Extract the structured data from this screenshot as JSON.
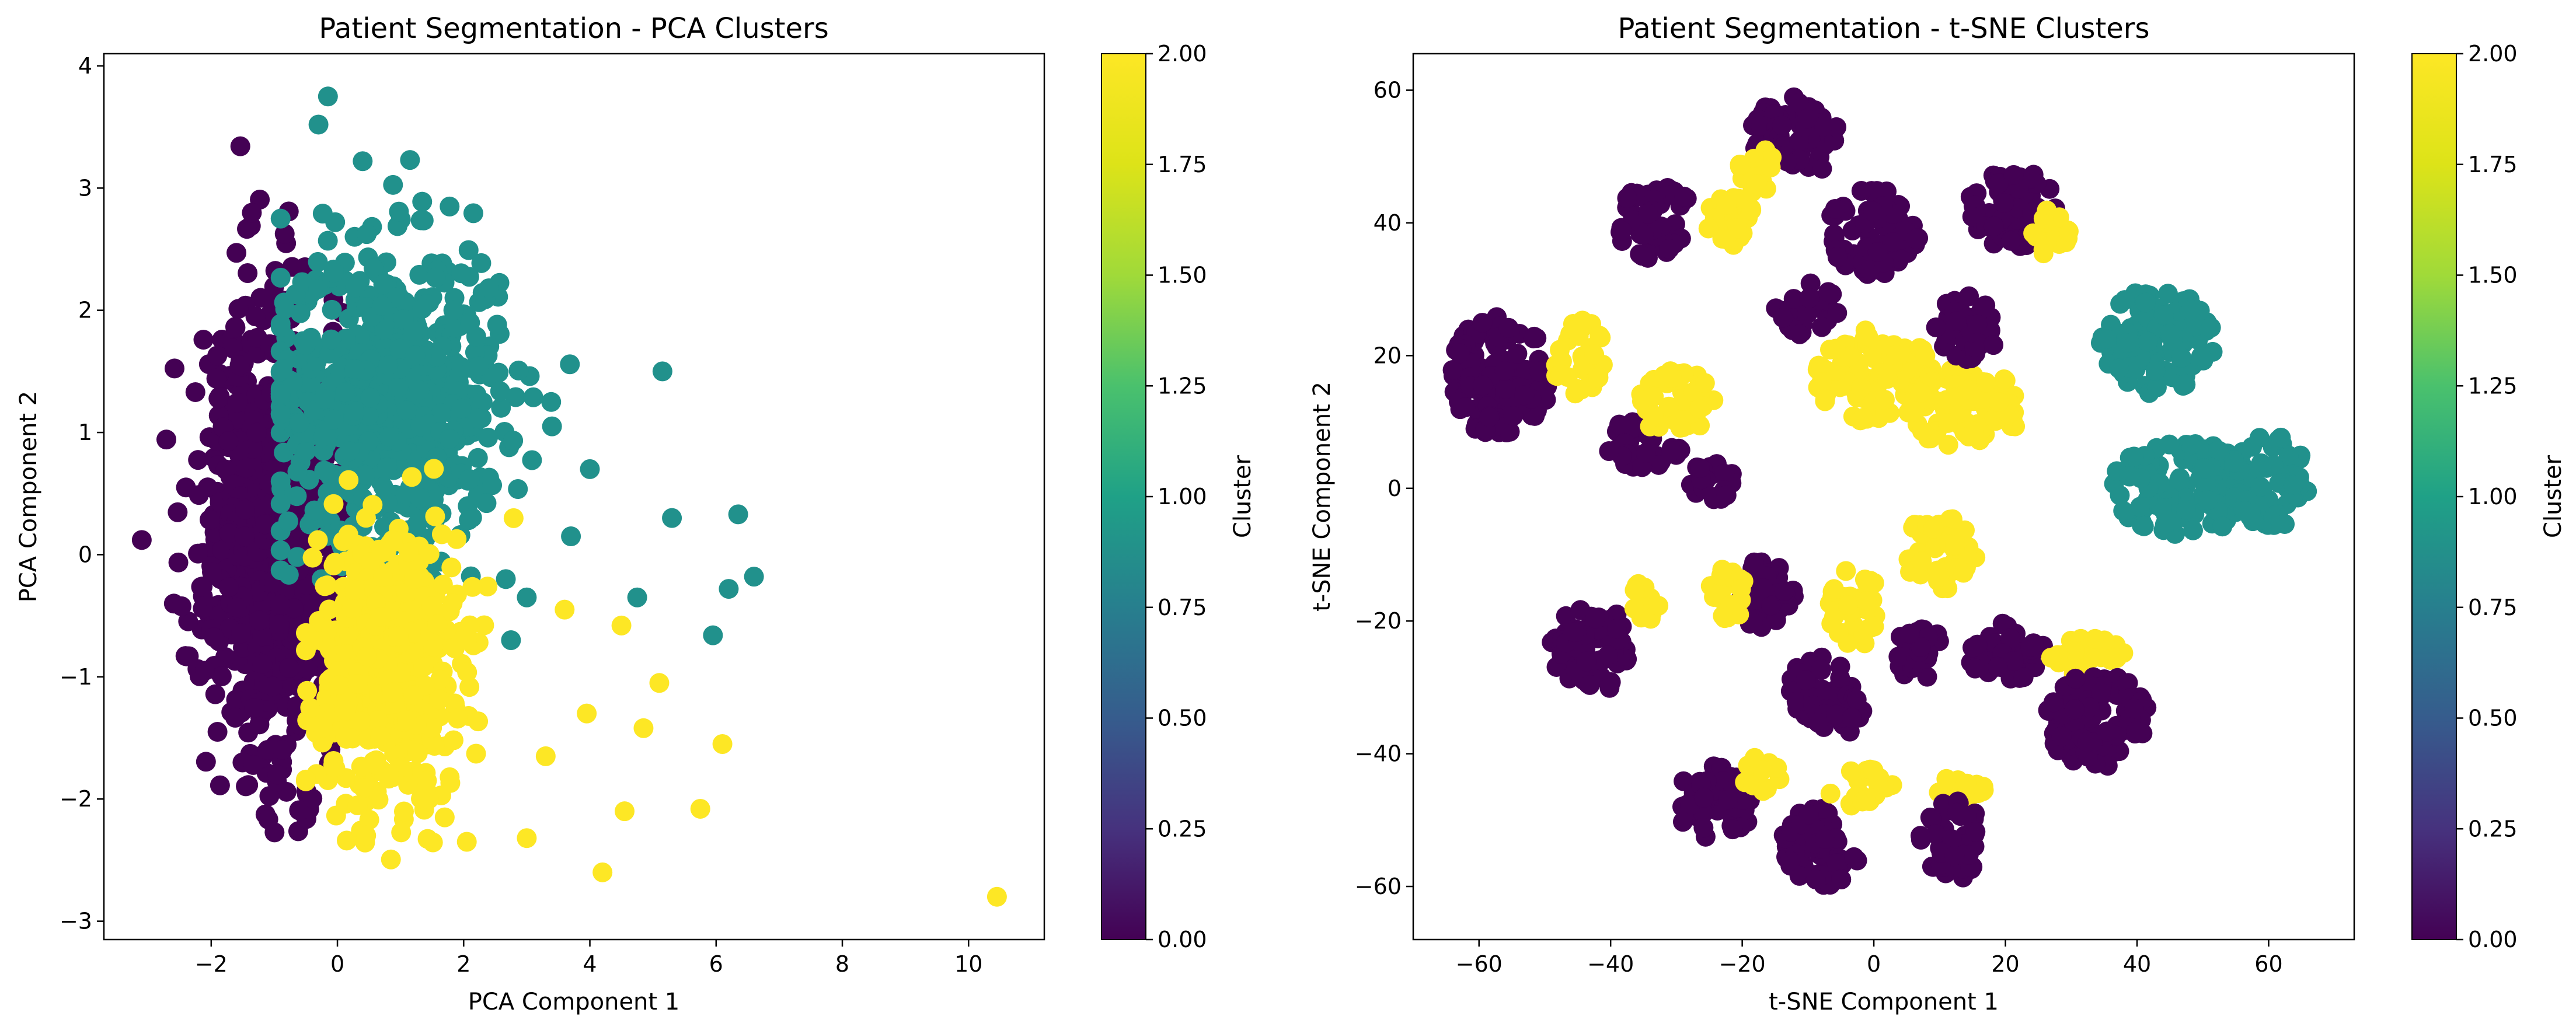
{
  "chart_data": [
    {
      "type": "scatter",
      "title": "Patient Segmentation - PCA Clusters",
      "xlabel": "PCA Component 1",
      "ylabel": "PCA Component 2",
      "xlim": [
        -3.7,
        11.2
      ],
      "ylim": [
        -3.15,
        4.1
      ],
      "xticks": [
        "−2",
        "0",
        "2",
        "4",
        "6",
        "8",
        "10"
      ],
      "xtick_values": [
        -2,
        0,
        2,
        4,
        6,
        8,
        10
      ],
      "yticks": [
        "−3",
        "−2",
        "−1",
        "0",
        "1",
        "2",
        "3",
        "4"
      ],
      "ytick_values": [
        -3,
        -2,
        -1,
        0,
        1,
        2,
        3,
        4
      ],
      "grid": false,
      "colorbar": {
        "label": "Cluster",
        "range": [
          0,
          2
        ],
        "colormap": "viridis",
        "ticks": [
          "0.00",
          "0.25",
          "0.50",
          "0.75",
          "1.00",
          "1.25",
          "1.50",
          "1.75",
          "2.00"
        ]
      },
      "series": [
        {
          "cluster": 0,
          "color": "#440154",
          "centroid": [
            -1.0,
            0.2
          ],
          "spread": [
            0.55,
            0.9
          ],
          "points": [
            [
              -3.1,
              0.12
            ],
            [
              -2.25,
              1.33
            ],
            [
              -2.1,
              -0.95
            ],
            [
              -1.6,
              2.47
            ],
            [
              -1.3,
              1.95
            ],
            [
              -1.0,
              2.05
            ],
            [
              -0.7,
              1.75
            ],
            [
              -0.95,
              -1.8
            ],
            [
              -0.45,
              -1.3
            ],
            [
              -1.55,
              1.55
            ],
            [
              -2.4,
              0.55
            ],
            [
              -1.9,
              -1.45
            ]
          ]
        },
        {
          "cluster": 1,
          "color": "#21918c",
          "centroid": [
            0.8,
            1.3
          ],
          "spread": [
            0.9,
            0.6
          ],
          "points": [
            [
              -0.15,
              3.75
            ],
            [
              -0.3,
              3.52
            ],
            [
              -0.9,
              2.75
            ],
            [
              0.4,
              3.22
            ],
            [
              1.15,
              3.23
            ],
            [
              2.4,
              2.18
            ],
            [
              5.15,
              1.5
            ],
            [
              6.35,
              0.33
            ],
            [
              6.6,
              -0.18
            ],
            [
              6.2,
              -0.28
            ],
            [
              5.95,
              -0.66
            ],
            [
              5.3,
              0.3
            ],
            [
              4.0,
              0.7
            ],
            [
              3.7,
              0.15
            ],
            [
              3.0,
              -0.35
            ],
            [
              2.75,
              -0.7
            ],
            [
              4.75,
              -0.35
            ],
            [
              3.4,
              1.05
            ],
            [
              1.45,
              -0.45
            ]
          ]
        },
        {
          "cluster": 2,
          "color": "#fde725",
          "centroid": [
            0.8,
            -0.9
          ],
          "spread": [
            0.55,
            0.55
          ],
          "points": [
            [
              10.45,
              -2.8
            ],
            [
              6.1,
              -1.55
            ],
            [
              5.75,
              -2.08
            ],
            [
              5.1,
              -1.05
            ],
            [
              4.2,
              -2.6
            ],
            [
              4.55,
              -2.1
            ],
            [
              4.85,
              -1.42
            ],
            [
              3.95,
              -1.3
            ],
            [
              3.3,
              -1.65
            ],
            [
              3.0,
              -2.32
            ],
            [
              2.05,
              -2.35
            ],
            [
              1.7,
              -2.15
            ],
            [
              1.45,
              -2.0
            ],
            [
              4.5,
              -0.58
            ],
            [
              3.6,
              -0.45
            ]
          ]
        }
      ]
    },
    {
      "type": "scatter",
      "title": "Patient Segmentation - t-SNE Clusters",
      "xlabel": "t-SNE Component 1",
      "ylabel": "t-SNE Component 2",
      "xlim": [
        -70,
        73
      ],
      "ylim": [
        -68,
        65.5
      ],
      "xticks": [
        "−60",
        "−40",
        "−20",
        "0",
        "20",
        "40",
        "60"
      ],
      "xtick_values": [
        -60,
        -40,
        -20,
        0,
        20,
        40,
        60
      ],
      "yticks": [
        "−60",
        "−40",
        "−20",
        "0",
        "20",
        "40",
        "60"
      ],
      "ytick_values": [
        -60,
        -40,
        -20,
        0,
        20,
        40,
        60
      ],
      "grid": false,
      "colorbar": {
        "label": "Cluster",
        "range": [
          0,
          2
        ],
        "colormap": "viridis",
        "ticks": [
          "0.00",
          "0.25",
          "0.50",
          "0.75",
          "1.00",
          "1.25",
          "1.50",
          "1.75",
          "2.00"
        ]
      },
      "blobs": [
        {
          "cluster": 0,
          "center": [
            -57,
            17
          ],
          "radius": [
            8,
            9
          ]
        },
        {
          "cluster": 2,
          "center": [
            -45,
            20
          ],
          "radius": [
            4,
            6
          ]
        },
        {
          "cluster": 0,
          "center": [
            -33,
            40
          ],
          "radius": [
            6,
            6
          ]
        },
        {
          "cluster": 2,
          "center": [
            -22,
            40
          ],
          "radius": [
            4,
            4
          ]
        },
        {
          "cluster": 0,
          "center": [
            -12,
            53
          ],
          "radius": [
            7,
            6
          ]
        },
        {
          "cluster": 2,
          "center": [
            -18,
            48
          ],
          "radius": [
            3,
            4
          ]
        },
        {
          "cluster": 0,
          "center": [
            0,
            39
          ],
          "radius": [
            7,
            7
          ]
        },
        {
          "cluster": 0,
          "center": [
            21,
            42
          ],
          "radius": [
            7,
            6
          ]
        },
        {
          "cluster": 2,
          "center": [
            27,
            38
          ],
          "radius": [
            3,
            4
          ]
        },
        {
          "cluster": 0,
          "center": [
            -35,
            7
          ],
          "radius": [
            6,
            4
          ]
        },
        {
          "cluster": 2,
          "center": [
            -30,
            13
          ],
          "radius": [
            6,
            5
          ]
        },
        {
          "cluster": 0,
          "center": [
            -25,
            1
          ],
          "radius": [
            4,
            3
          ]
        },
        {
          "cluster": 0,
          "center": [
            -10,
            27
          ],
          "radius": [
            5,
            4
          ]
        },
        {
          "cluster": 2,
          "center": [
            0,
            17
          ],
          "radius": [
            9,
            7
          ]
        },
        {
          "cluster": 2,
          "center": [
            14,
            12
          ],
          "radius": [
            9,
            6
          ]
        },
        {
          "cluster": 0,
          "center": [
            14,
            24
          ],
          "radius": [
            5,
            5
          ]
        },
        {
          "cluster": 1,
          "center": [
            43,
            22
          ],
          "radius": [
            9,
            8
          ]
        },
        {
          "cluster": 1,
          "center": [
            47,
            0
          ],
          "radius": [
            11,
            7
          ]
        },
        {
          "cluster": 1,
          "center": [
            60,
            1
          ],
          "radius": [
            6,
            7
          ]
        },
        {
          "cluster": 0,
          "center": [
            -43,
            -24
          ],
          "radius": [
            6,
            7
          ]
        },
        {
          "cluster": 2,
          "center": [
            -35,
            -17
          ],
          "radius": [
            3,
            3
          ]
        },
        {
          "cluster": 0,
          "center": [
            -17,
            -16
          ],
          "radius": [
            5,
            5
          ]
        },
        {
          "cluster": 2,
          "center": [
            -22,
            -16
          ],
          "radius": [
            3,
            4
          ]
        },
        {
          "cluster": 2,
          "center": [
            -3,
            -18
          ],
          "radius": [
            4,
            6
          ]
        },
        {
          "cluster": 2,
          "center": [
            10,
            -10
          ],
          "radius": [
            6,
            6
          ]
        },
        {
          "cluster": 0,
          "center": [
            -8,
            -30
          ],
          "radius": [
            5,
            5
          ]
        },
        {
          "cluster": 0,
          "center": [
            7,
            -25
          ],
          "radius": [
            4,
            4
          ]
        },
        {
          "cluster": 0,
          "center": [
            20,
            -25
          ],
          "radius": [
            6,
            5
          ]
        },
        {
          "cluster": 2,
          "center": [
            32,
            -25
          ],
          "radius": [
            6,
            3
          ]
        },
        {
          "cluster": 0,
          "center": [
            34,
            -35
          ],
          "radius": [
            8,
            7
          ]
        },
        {
          "cluster": 0,
          "center": [
            -24,
            -47
          ],
          "radius": [
            6,
            6
          ]
        },
        {
          "cluster": 2,
          "center": [
            -17,
            -43
          ],
          "radius": [
            3,
            3
          ]
        },
        {
          "cluster": 0,
          "center": [
            -8,
            -54
          ],
          "radius": [
            6,
            6
          ]
        },
        {
          "cluster": 2,
          "center": [
            -2,
            -45
          ],
          "radius": [
            5,
            3
          ]
        },
        {
          "cluster": 2,
          "center": [
            13,
            -45
          ],
          "radius": [
            4,
            2
          ]
        },
        {
          "cluster": 0,
          "center": [
            12,
            -53
          ],
          "radius": [
            5,
            6
          ]
        },
        {
          "cluster": 0,
          "center": [
            -5,
            -34
          ],
          "radius": [
            4,
            3
          ]
        }
      ]
    }
  ]
}
